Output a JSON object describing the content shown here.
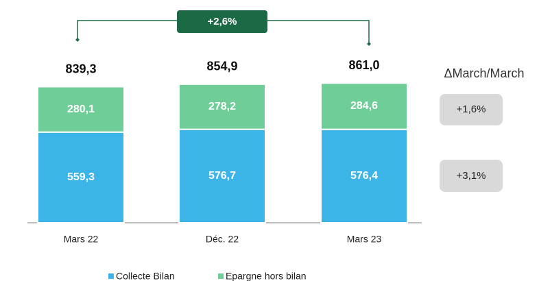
{
  "chart_data": {
    "type": "stacked_bar",
    "categories": [
      "Mars 22",
      "Déc. 22",
      "Mars 23"
    ],
    "series": [
      {
        "name": "Collecte Bilan",
        "color": "#3db4e7",
        "values": [
          559.3,
          576.7,
          576.4
        ],
        "value_labels": [
          "559,3",
          "576,7",
          "576,4"
        ]
      },
      {
        "name": "Epargne hors bilan",
        "color": "#6fcd98",
        "values": [
          280.1,
          278.2,
          284.6
        ],
        "value_labels": [
          "280,1",
          "278,2",
          "284,6"
        ]
      }
    ],
    "totals": [
      839.3,
      854.9,
      861.0
    ],
    "total_labels": [
      "839,3",
      "854,9",
      "861,0"
    ],
    "annotation": "+2,6%",
    "delta_title": "ΔMarch/March",
    "deltas": [
      "+1,6%",
      "+3,1%"
    ]
  }
}
